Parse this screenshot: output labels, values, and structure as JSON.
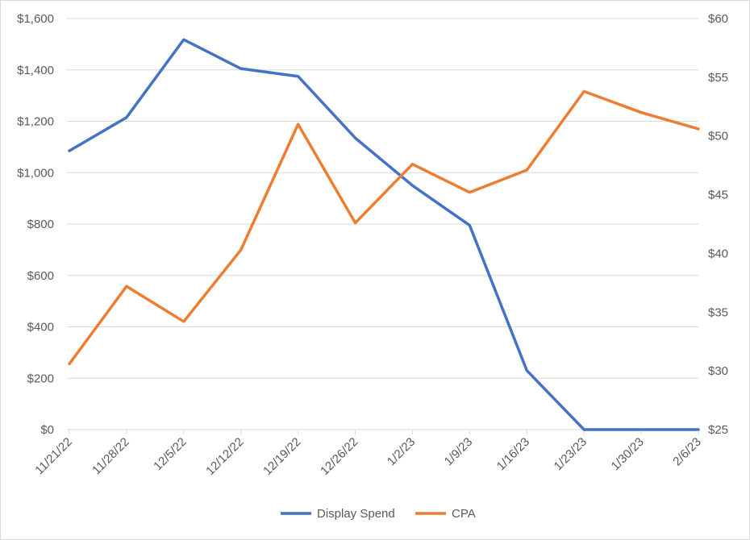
{
  "chart_data": {
    "type": "line",
    "categories": [
      "11/21/22",
      "11/28/22",
      "12/5/22",
      "12/12/22",
      "12/19/22",
      "12/26/22",
      "1/2/23",
      "1/9/23",
      "1/16/23",
      "1/23/23",
      "1/30/23",
      "2/6/23"
    ],
    "series": [
      {
        "name": "Display Spend",
        "axis": "left",
        "color": "#4472C4",
        "values": [
          1085,
          1215,
          1518,
          1405,
          1375,
          1135,
          950,
          795,
          230,
          0,
          0,
          0
        ]
      },
      {
        "name": "CPA",
        "axis": "right",
        "color": "#ED7D31",
        "values": [
          30.6,
          37.2,
          34.2,
          40.3,
          51.0,
          42.6,
          47.6,
          45.2,
          47.1,
          53.8,
          52.0,
          50.6
        ]
      }
    ],
    "y_left": {
      "min": 0,
      "max": 1600,
      "step": 200,
      "tick_labels": [
        "$0",
        "$200",
        "$400",
        "$600",
        "$800",
        "$1,000",
        "$1,200",
        "$1,400",
        "$1,600"
      ]
    },
    "y_right": {
      "min": 25,
      "max": 60,
      "step": 5,
      "tick_labels": [
        "$25",
        "$30",
        "$35",
        "$40",
        "$45",
        "$50",
        "$55",
        "$60"
      ]
    },
    "grid": true,
    "legend": "bottom-center",
    "title": "",
    "xlabel": "",
    "ylabel": ""
  }
}
